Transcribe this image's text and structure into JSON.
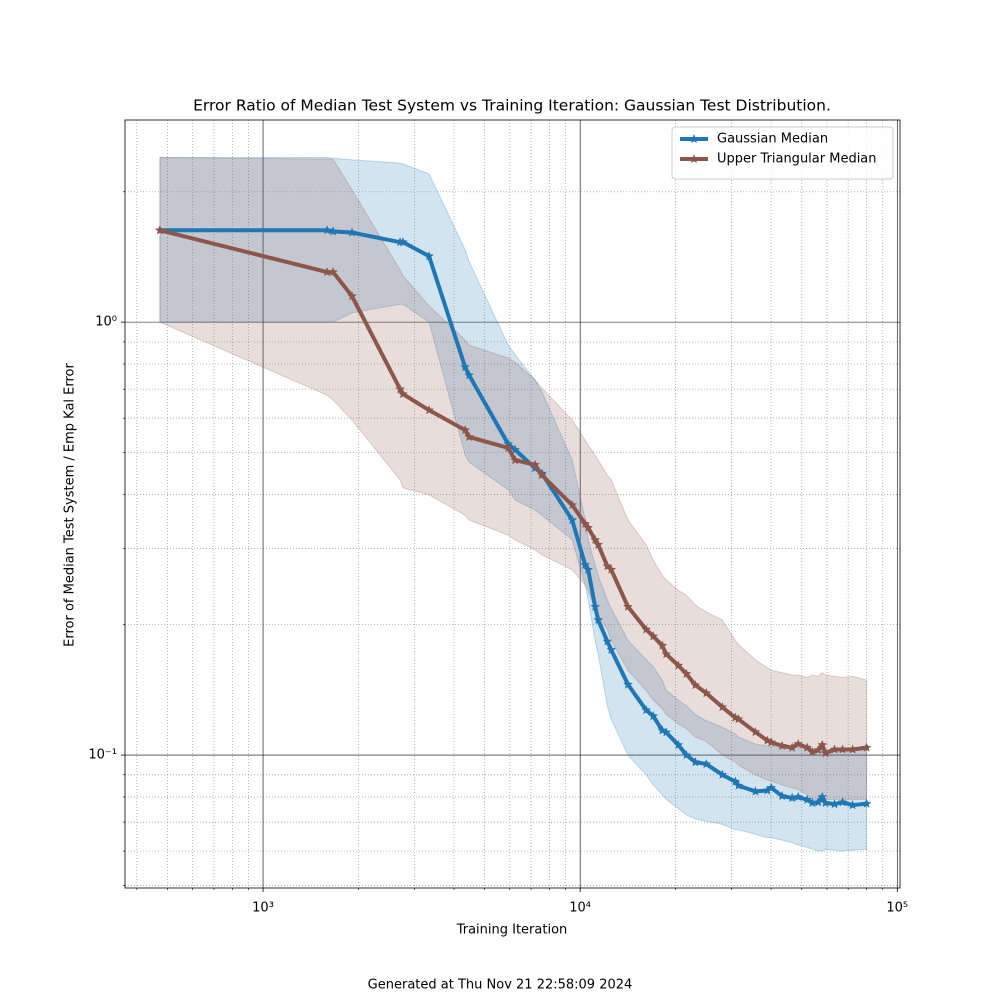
{
  "chart_data": {
    "type": "line",
    "title": "Error Ratio of Median Test System vs Training Iteration: Gaussian Test Distribution.",
    "xlabel": "Training Iteration",
    "ylabel": "Error of Median Test System / Emp Kal Error",
    "footer": "Generated at Thu Nov 21 22:58:09 2024",
    "xscale": "log",
    "yscale": "log",
    "grid": true,
    "legend": "upper right",
    "xlim": [
      367,
      102000
    ],
    "ylim": [
      0.0493,
      2.93
    ],
    "xticks": [
      {
        "value": 1000,
        "label": "10³"
      },
      {
        "value": 10000,
        "label": "10⁴"
      },
      {
        "value": 100000,
        "label": "10⁵"
      }
    ],
    "yticks": [
      {
        "value": 0.1,
        "label": "10⁻¹"
      },
      {
        "value": 1,
        "label": "10⁰"
      }
    ],
    "xminorticks": [
      400,
      500,
      600,
      700,
      800,
      900,
      2000,
      3000,
      4000,
      5000,
      6000,
      7000,
      8000,
      9000,
      20000,
      30000,
      40000,
      50000,
      60000,
      70000,
      80000,
      90000
    ],
    "yminorticks": [
      0.05,
      0.06,
      0.07,
      0.08,
      0.09,
      0.2,
      0.3,
      0.4,
      0.5,
      0.6,
      0.7,
      0.8,
      0.9,
      2
    ],
    "x": [
      473,
      1592,
      1663,
      1908,
      2705,
      2762,
      3338,
      4338,
      4465,
      5928,
      6237,
      7207,
      7577,
      9440,
      10370,
      10600,
      11150,
      11400,
      12180,
      12530,
      14150,
      16150,
      17000,
      18150,
      18680,
      20400,
      21630,
      23080,
      24990,
      28080,
      30860,
      31550,
      35700,
      38930,
      40060,
      43340,
      46610,
      48700,
      51990,
      53930,
      56330,
      58000,
      59380,
      63400,
      67200,
      72300,
      80000
    ],
    "series": [
      {
        "name": "Gaussian Median",
        "color": "#1f77b4",
        "values": [
          1.63,
          1.63,
          1.62,
          1.61,
          1.53,
          1.53,
          1.42,
          0.787,
          0.754,
          0.523,
          0.507,
          0.46,
          0.447,
          0.349,
          0.275,
          0.268,
          0.22,
          0.205,
          0.183,
          0.175,
          0.1455,
          0.127,
          0.123,
          0.114,
          0.1128,
          0.1055,
          0.1,
          0.0963,
          0.0953,
          0.09,
          0.0868,
          0.085,
          0.0824,
          0.0828,
          0.084,
          0.0804,
          0.0796,
          0.08,
          0.0788,
          0.0775,
          0.0778,
          0.08,
          0.0775,
          0.077,
          0.0778,
          0.0766,
          0.0772
        ],
        "upper": [
          2.4,
          2.4,
          2.39,
          2.37,
          2.33,
          2.32,
          2.2,
          1.47,
          1.38,
          0.885,
          0.84,
          0.735,
          0.69,
          0.48,
          0.35,
          0.314,
          0.275,
          0.26,
          0.228,
          0.218,
          0.184,
          0.166,
          0.16,
          0.149,
          0.141,
          0.134,
          0.13,
          0.124,
          0.12,
          0.116,
          0.112,
          0.11,
          0.106,
          0.105,
          0.105,
          0.104,
          0.104,
          0.104,
          0.103,
          0.103,
          0.103,
          0.104,
          0.103,
          0.103,
          0.103,
          0.103,
          0.103
        ],
        "lower": [
          1.0,
          1.0,
          1.0,
          1.05,
          1.1,
          1.1,
          1.0,
          0.493,
          0.475,
          0.41,
          0.388,
          0.368,
          0.358,
          0.314,
          0.247,
          0.228,
          0.184,
          0.171,
          0.13,
          0.121,
          0.1,
          0.09,
          0.0853,
          0.081,
          0.079,
          0.0752,
          0.0727,
          0.0712,
          0.0703,
          0.0692,
          0.0672,
          0.0672,
          0.0656,
          0.0644,
          0.0644,
          0.0636,
          0.0627,
          0.062,
          0.0612,
          0.0606,
          0.06,
          0.06,
          0.0606,
          0.0603,
          0.06,
          0.0603,
          0.0606
        ]
      },
      {
        "name": "Upper Triangular Median",
        "color": "#8c564b",
        "values": [
          1.63,
          1.305,
          1.305,
          1.148,
          0.7,
          0.682,
          0.626,
          0.563,
          0.543,
          0.512,
          0.48,
          0.468,
          0.443,
          0.378,
          0.342,
          0.335,
          0.314,
          0.306,
          0.273,
          0.268,
          0.22,
          0.195,
          0.188,
          0.179,
          0.171,
          0.161,
          0.154,
          0.145,
          0.139,
          0.129,
          0.122,
          0.121,
          0.113,
          0.108,
          0.107,
          0.105,
          0.104,
          0.106,
          0.104,
          0.1016,
          0.1027,
          0.1055,
          0.101,
          0.103,
          0.103,
          0.103,
          0.104
        ],
        "upper": [
          2.4,
          2.38,
          2.38,
          2.02,
          1.32,
          1.28,
          1.09,
          0.909,
          0.885,
          0.826,
          0.808,
          0.735,
          0.704,
          0.594,
          0.534,
          0.52,
          0.493,
          0.48,
          0.443,
          0.432,
          0.349,
          0.306,
          0.282,
          0.26,
          0.254,
          0.24,
          0.234,
          0.222,
          0.214,
          0.205,
          0.184,
          0.18,
          0.166,
          0.159,
          0.157,
          0.155,
          0.153,
          0.153,
          0.151,
          0.153,
          0.152,
          0.155,
          0.153,
          0.152,
          0.151,
          0.152,
          0.149
        ],
        "lower": [
          1.0,
          0.678,
          0.661,
          0.594,
          0.432,
          0.414,
          0.399,
          0.358,
          0.349,
          0.322,
          0.314,
          0.298,
          0.29,
          0.268,
          0.247,
          0.24,
          0.216,
          0.211,
          0.195,
          0.184,
          0.157,
          0.141,
          0.134,
          0.128,
          0.124,
          0.118,
          0.115,
          0.11,
          0.1075,
          0.1,
          0.0963,
          0.0948,
          0.09,
          0.0876,
          0.087,
          0.0853,
          0.084,
          0.0832,
          0.081,
          0.079,
          0.079,
          0.0795,
          0.079,
          0.079,
          0.079,
          0.079,
          0.079
        ]
      }
    ]
  }
}
